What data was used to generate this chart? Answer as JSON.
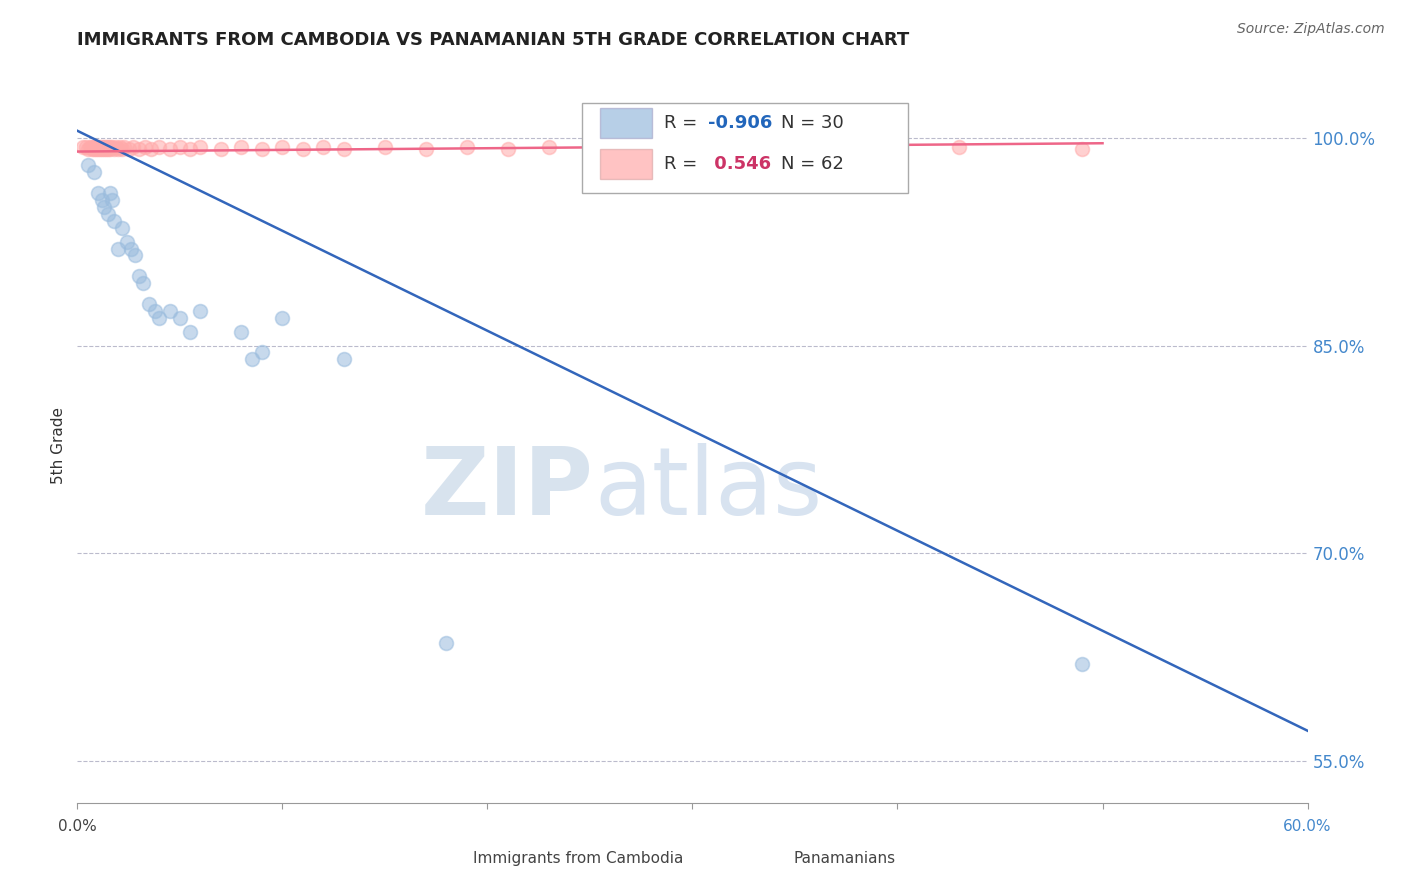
{
  "title": "IMMIGRANTS FROM CAMBODIA VS PANAMANIAN 5TH GRADE CORRELATION CHART",
  "source": "Source: ZipAtlas.com",
  "ylabel": "5th Grade",
  "y_tick_labels": [
    "100.0%",
    "85.0%",
    "70.0%",
    "55.0%"
  ],
  "y_tick_values": [
    1.0,
    0.85,
    0.7,
    0.55
  ],
  "xlim": [
    0.0,
    0.6
  ],
  "ylim": [
    0.52,
    1.035
  ],
  "legend_r_blue": "-0.906",
  "legend_n_blue": "30",
  "legend_r_pink": "0.546",
  "legend_n_pink": "62",
  "legend_label_blue": "Immigrants from Cambodia",
  "legend_label_pink": "Panamanians",
  "blue_color": "#99bbdd",
  "pink_color": "#ffaaaa",
  "blue_line_color": "#3366bb",
  "pink_line_color": "#ee6688",
  "watermark_zip": "ZIP",
  "watermark_atlas": "atlas",
  "watermark_color": "#c5d8ee",
  "blue_scatter_x": [
    0.005,
    0.008,
    0.01,
    0.012,
    0.013,
    0.015,
    0.016,
    0.017,
    0.018,
    0.02,
    0.022,
    0.024,
    0.026,
    0.028,
    0.03,
    0.032,
    0.035,
    0.038,
    0.04,
    0.045,
    0.05,
    0.055,
    0.06,
    0.08,
    0.085,
    0.09,
    0.1,
    0.13,
    0.18,
    0.49
  ],
  "blue_scatter_y": [
    0.98,
    0.975,
    0.96,
    0.955,
    0.95,
    0.945,
    0.96,
    0.955,
    0.94,
    0.92,
    0.935,
    0.925,
    0.92,
    0.915,
    0.9,
    0.895,
    0.88,
    0.875,
    0.87,
    0.875,
    0.87,
    0.86,
    0.875,
    0.86,
    0.84,
    0.845,
    0.87,
    0.84,
    0.635,
    0.62
  ],
  "pink_scatter_x": [
    0.003,
    0.004,
    0.005,
    0.006,
    0.007,
    0.007,
    0.008,
    0.008,
    0.009,
    0.009,
    0.01,
    0.01,
    0.011,
    0.011,
    0.012,
    0.012,
    0.013,
    0.013,
    0.014,
    0.014,
    0.015,
    0.015,
    0.016,
    0.016,
    0.017,
    0.018,
    0.019,
    0.02,
    0.021,
    0.022,
    0.023,
    0.025,
    0.027,
    0.03,
    0.033,
    0.036,
    0.04,
    0.045,
    0.05,
    0.055,
    0.06,
    0.07,
    0.08,
    0.09,
    0.1,
    0.11,
    0.12,
    0.13,
    0.15,
    0.17,
    0.19,
    0.21,
    0.23,
    0.25,
    0.27,
    0.29,
    0.31,
    0.33,
    0.36,
    0.39,
    0.43,
    0.49
  ],
  "pink_scatter_y": [
    0.993,
    0.993,
    0.992,
    0.993,
    0.993,
    0.992,
    0.993,
    0.992,
    0.993,
    0.992,
    0.993,
    0.992,
    0.993,
    0.992,
    0.993,
    0.992,
    0.993,
    0.992,
    0.993,
    0.992,
    0.993,
    0.992,
    0.993,
    0.992,
    0.993,
    0.992,
    0.993,
    0.992,
    0.993,
    0.992,
    0.993,
    0.992,
    0.993,
    0.992,
    0.993,
    0.992,
    0.993,
    0.992,
    0.993,
    0.992,
    0.993,
    0.992,
    0.993,
    0.992,
    0.993,
    0.992,
    0.993,
    0.992,
    0.993,
    0.992,
    0.993,
    0.992,
    0.993,
    0.992,
    0.993,
    0.992,
    0.993,
    0.992,
    0.993,
    0.992,
    0.993,
    0.992
  ],
  "blue_line_x": [
    0.0,
    0.6
  ],
  "blue_line_y": [
    1.005,
    0.572
  ],
  "pink_line_x": [
    0.0,
    0.5
  ],
  "pink_line_y": [
    0.99,
    0.996
  ]
}
